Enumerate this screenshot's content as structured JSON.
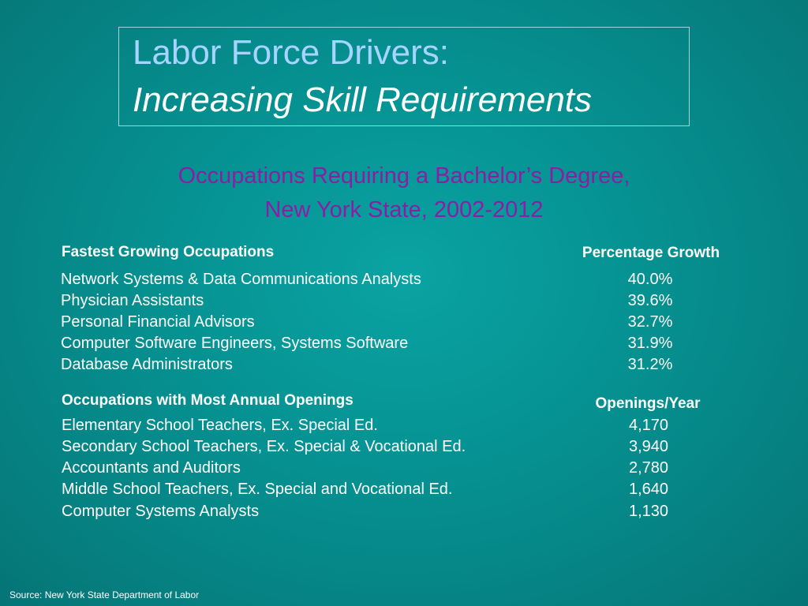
{
  "title": {
    "line1": "Labor Force Drivers:",
    "line2": "Increasing Skill Requirements"
  },
  "subtitle": {
    "line1": "Occupations Requiring a Bachelor’s Degree,",
    "line2": "New York State, 2002-2012"
  },
  "fastest": {
    "header": "Fastest Growing Occupations",
    "value_header": "Percentage Growth",
    "rows": [
      {
        "name": "Network Systems & Data Communications Analysts",
        "value": "40.0%"
      },
      {
        "name": "Physician Assistants",
        "value": "39.6%"
      },
      {
        "name": "Personal Financial Advisors",
        "value": "32.7%"
      },
      {
        "name": "Computer Software Engineers, Systems Software",
        "value": "31.9%"
      },
      {
        "name": "Database Administrators",
        "value": "31.2%"
      }
    ]
  },
  "openings": {
    "header": "Occupations with Most Annual Openings",
    "value_header": "Openings/Year",
    "rows": [
      {
        "name": "Elementary School Teachers, Ex. Special Ed.",
        "value": "4,170"
      },
      {
        "name": "Secondary School Teachers, Ex. Special & Vocational Ed.",
        "value": "3,940"
      },
      {
        "name": "Accountants and Auditors",
        "value": "2,780"
      },
      {
        "name": "Middle School Teachers, Ex. Special and Vocational Ed.",
        "value": "1,640"
      },
      {
        "name": "Computer Systems Analysts",
        "value": "1,130"
      }
    ]
  },
  "source": "Source:  New York State Department of Labor"
}
